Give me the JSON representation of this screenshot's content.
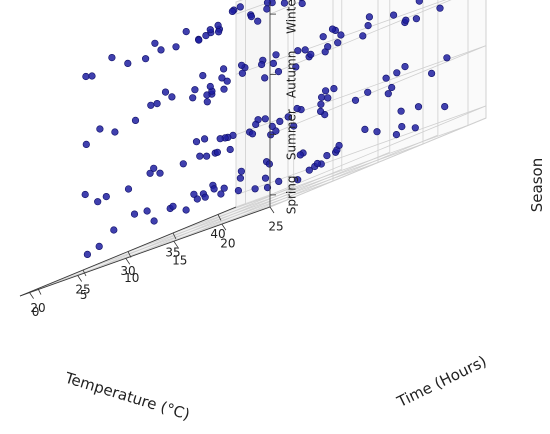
{
  "chart_data": {
    "type": "scatter",
    "projection": "3d",
    "marker_color": "#1f1fa0",
    "marker_edge_color": "#10106a",
    "pane_color": "#f2f2f2",
    "grid": true,
    "axes": {
      "x": {
        "label": "Temperature (°C)",
        "range": [
          18,
          42
        ],
        "ticks": [
          20,
          25,
          30,
          35,
          40
        ],
        "tick_labels": [
          "20",
          "25",
          "30",
          "35",
          "40"
        ]
      },
      "y": {
        "label": "Time (Hours)",
        "range": [
          -1,
          25
        ],
        "ticks": [
          0,
          5,
          10,
          15,
          20,
          25
        ],
        "tick_labels": [
          "0",
          "5",
          "10",
          "15",
          "20",
          "25"
        ]
      },
      "z": {
        "label": "Season",
        "range": [
          -0.2,
          3.2
        ],
        "ticks": [
          0,
          1,
          2,
          3
        ],
        "tick_labels": [
          "Spring",
          "Summer",
          "Autumn",
          "Winter"
        ]
      }
    },
    "series": [
      {
        "points": [
          [
            22.1,
            3.4,
            0.12
          ],
          [
            27.8,
            8.9,
            0.33
          ],
          [
            34.5,
            14.2,
            0.07
          ],
          [
            39.2,
            20.6,
            0.41
          ],
          [
            25.3,
            23.1,
            0.18
          ],
          [
            31.7,
            1.8,
            0.25
          ],
          [
            36.9,
            11.4,
            0.02
          ],
          [
            20.6,
            17.8,
            0.36
          ],
          [
            29.4,
            5.6,
            0.15
          ],
          [
            33.2,
            21.9,
            0.29
          ],
          [
            24.8,
            12.7,
            0.44
          ],
          [
            38.1,
            2.9,
            0.09
          ],
          [
            21.9,
            9.3,
            0.22
          ],
          [
            35.6,
            18.4,
            0.38
          ],
          [
            28.3,
            15.1,
            0.05
          ],
          [
            40.7,
            7.2,
            0.31
          ],
          [
            26.5,
            0.8,
            0.27
          ],
          [
            32.9,
            24.2,
            0.13
          ],
          [
            23.7,
            19.6,
            0.47
          ],
          [
            37.4,
            13.8,
            0.19
          ],
          [
            30.2,
            10.5,
            0.35
          ],
          [
            19.4,
            4.7,
            0.08
          ],
          [
            34.8,
            6.3,
            0.42
          ],
          [
            27.1,
            22.4,
            0.24
          ],
          [
            41.3,
            16.9,
            0.16
          ],
          [
            22.9,
            14.6,
            0.39
          ],
          [
            36.2,
            0.4,
            0.21
          ],
          [
            29.9,
            19.2,
            0.11
          ],
          [
            25.6,
            7.8,
            0.32
          ],
          [
            38.8,
            23.7,
            0.26
          ],
          [
            31.4,
            12.1,
            0.46
          ],
          [
            20.3,
            21.3,
            0.17
          ],
          [
            35.1,
            9.9,
            0.03
          ],
          [
            28.7,
            2.2,
            0.37
          ],
          [
            33.9,
            17.3,
            0.28
          ],
          [
            24.2,
            5.1,
            0.43
          ],
          [
            39.6,
            11.6,
            0.14
          ],
          [
            26.9,
            16.2,
            0.23
          ],
          [
            32.3,
            3.7,
            0.34
          ],
          [
            21.5,
            24.6,
            0.06
          ],
          [
            37.8,
            20.1,
            0.45
          ],
          [
            30.6,
            8.1,
            0.2
          ],
          [
            23.3,
            13.3,
            0.3
          ],
          [
            36.5,
            22.8,
            0.1
          ],
          [
            28.1,
            18.7,
            0.4
          ],
          [
            21.4,
            2.6,
            1.07
          ],
          [
            27.3,
            9.7,
            0.94
          ],
          [
            34.1,
            15.3,
            1.18
          ],
          [
            39.8,
            21.4,
            0.88
          ],
          [
            24.9,
            23.8,
            1.03
          ],
          [
            31.2,
            1.2,
            0.9
          ],
          [
            36.4,
            10.6,
            1.12
          ],
          [
            20.1,
            18.9,
            0.97
          ],
          [
            29.7,
            6.4,
            1.22
          ],
          [
            33.6,
            22.7,
            0.85
          ],
          [
            25.4,
            13.4,
            1.15
          ],
          [
            38.6,
            3.6,
            0.99
          ],
          [
            22.6,
            8.6,
            1.09
          ],
          [
            35.3,
            17.7,
            0.92
          ],
          [
            28.8,
            14.4,
            1.2
          ],
          [
            40.9,
            6.8,
            1.04
          ],
          [
            26.2,
            0.3,
            0.87
          ],
          [
            32.5,
            23.5,
            1.13
          ],
          [
            23.1,
            20.3,
            0.95
          ],
          [
            37.1,
            12.9,
            1.24
          ],
          [
            30.8,
            11.2,
            1.01
          ],
          [
            19.8,
            5.4,
            0.89
          ],
          [
            35.8,
            7.1,
            1.17
          ],
          [
            27.6,
            21.7,
            0.93
          ],
          [
            41.6,
            16.1,
            1.08
          ],
          [
            22.3,
            15.8,
            1.19
          ],
          [
            36.8,
            1.7,
            0.86
          ],
          [
            29.1,
            19.9,
            1.11
          ],
          [
            26.1,
            8.4,
            0.96
          ],
          [
            38.3,
            24.4,
            1.06
          ],
          [
            31.9,
            12.6,
            0.91
          ],
          [
            20.9,
            20.8,
            1.23
          ],
          [
            34.9,
            10.2,
            1.02
          ],
          [
            28.4,
            2.8,
            0.98
          ],
          [
            33.4,
            16.6,
            1.14
          ],
          [
            24.5,
            4.2,
            0.88
          ],
          [
            39.1,
            11.9,
            1.21
          ],
          [
            26.7,
            17.1,
            1.05
          ],
          [
            32.1,
            4.5,
            0.94
          ],
          [
            21.2,
            23.9,
            1.16
          ],
          [
            37.5,
            19.4,
            0.9
          ],
          [
            30.3,
            9.1,
            1.1
          ],
          [
            23.8,
            14.1,
            0.97
          ],
          [
            36.1,
            22.1,
            1.18
          ],
          [
            27.9,
            18.2,
            0.92
          ],
          [
            34.3,
            5.9,
            1.07
          ],
          [
            25.8,
            10.9,
            1.25
          ],
          [
            38.9,
            15.6,
            0.95
          ],
          [
            22.5,
            3.1,
            2.06
          ],
          [
            28.2,
            9.4,
            1.93
          ],
          [
            34.7,
            14.9,
            2.17
          ],
          [
            39.4,
            20.2,
            1.88
          ],
          [
            25.1,
            22.6,
            2.03
          ],
          [
            31.5,
            1.5,
            2.21
          ],
          [
            37.2,
            11.1,
            1.9
          ],
          [
            20.4,
            18.3,
            2.12
          ],
          [
            29.6,
            6.1,
            1.97
          ],
          [
            33.1,
            21.2,
            2.24
          ],
          [
            24.6,
            12.3,
            1.86
          ],
          [
            38.4,
            3.3,
            2.09
          ],
          [
            21.7,
            9.8,
            2.15
          ],
          [
            35.9,
            17.9,
            1.94
          ],
          [
            28.6,
            15.7,
            2.2
          ],
          [
            40.5,
            7.6,
            2.01
          ],
          [
            26.3,
            1.1,
            1.89
          ],
          [
            32.7,
            24.1,
            2.13
          ],
          [
            23.5,
            19.1,
            2.23
          ],
          [
            37.7,
            13.6,
            1.96
          ],
          [
            30.1,
            10.8,
            2.08
          ],
          [
            19.6,
            4.4,
            1.91
          ],
          [
            34.4,
            6.7,
            2.18
          ],
          [
            27.4,
            22.2,
            2.04
          ],
          [
            41.1,
            17.4,
            1.87
          ],
          [
            22.8,
            14.3,
            2.11
          ],
          [
            36.6,
            0.6,
            2.22
          ],
          [
            29.8,
            19.7,
            1.95
          ],
          [
            25.9,
            7.4,
            2.14
          ],
          [
            38.7,
            23.3,
            1.92
          ],
          [
            31.3,
            12.9,
            2.05
          ],
          [
            20.7,
            21.6,
            2.19
          ],
          [
            35.4,
            9.6,
            1.85
          ],
          [
            28.9,
            2.4,
            2.1
          ],
          [
            33.7,
            16.8,
            2.25
          ],
          [
            24.1,
            5.3,
            1.98
          ],
          [
            39.9,
            11.3,
            2.16
          ],
          [
            26.6,
            16.4,
            1.9
          ],
          [
            32.2,
            3.9,
            2.07
          ],
          [
            21.3,
            24.8,
            2.2
          ],
          [
            37.9,
            20.5,
            1.93
          ],
          [
            30.5,
            8.3,
            2.12
          ],
          [
            23.4,
            13.9,
            2.02
          ],
          [
            36.3,
            23.4,
            2.18
          ],
          [
            27.7,
            18.6,
            1.89
          ],
          [
            34.0,
            5.2,
            2.23
          ],
          [
            25.2,
            11.7,
            1.97
          ],
          [
            38.2,
            16.3,
            2.06
          ],
          [
            29.3,
            21.8,
            2.14
          ],
          [
            31.8,
            7.3,
            1.91
          ],
          [
            21.8,
            2.3,
            3.02
          ],
          [
            27.5,
            8.7,
            2.91
          ],
          [
            34.2,
            14.7,
            3.13
          ],
          [
            39.7,
            20.9,
            2.86
          ],
          [
            25.7,
            23.4,
            3.07
          ],
          [
            31.1,
            1.4,
            2.94
          ],
          [
            36.7,
            11.8,
            3.18
          ],
          [
            20.2,
            17.6,
            2.99
          ],
          [
            29.2,
            5.8,
            3.11
          ],
          [
            33.8,
            22.3,
            2.88
          ],
          [
            24.4,
            12.8,
            3.04
          ],
          [
            38.5,
            3.8,
            2.93
          ],
          [
            22.2,
            9.1,
            3.16
          ],
          [
            35.2,
            18.1,
            2.97
          ],
          [
            28.5,
            15.4,
            3.09
          ],
          [
            40.8,
            6.9,
            2.9
          ],
          [
            26.4,
            0.7,
            3.14
          ],
          [
            32.6,
            24.3,
            2.96
          ],
          [
            23.2,
            19.8,
            3.06
          ],
          [
            37.3,
            13.2,
            2.87
          ],
          [
            30.4,
            10.3,
            3.19
          ],
          [
            19.7,
            4.9,
            3.01
          ],
          [
            35.7,
            6.5,
            2.92
          ],
          [
            27.2,
            21.5,
            3.12
          ],
          [
            41.4,
            16.7,
            2.98
          ],
          [
            22.7,
            15.2,
            3.08
          ],
          [
            36.1,
            1.9,
            2.89
          ],
          [
            29.5,
            20.4,
            3.15
          ],
          [
            25.5,
            8.2,
            2.95
          ],
          [
            38.1,
            24.0,
            3.05
          ],
          [
            31.6,
            12.4,
            3.17
          ],
          [
            20.8,
            21.1,
            2.93
          ],
          [
            35.0,
            10.1,
            3.1
          ],
          [
            28.0,
            2.7,
            2.91
          ],
          [
            33.3,
            17.2,
            3.2
          ],
          [
            24.0,
            4.6,
            2.97
          ],
          [
            39.3,
            12.2,
            3.03
          ],
          [
            26.8,
            16.5,
            3.13
          ],
          [
            32.4,
            4.1,
            2.88
          ],
          [
            21.1,
            23.6,
            3.07
          ],
          [
            37.6,
            19.3,
            2.94
          ],
          [
            30.7,
            9.2,
            3.16
          ],
          [
            23.6,
            14.5,
            3.0
          ],
          [
            36.4,
            22.5,
            3.11
          ],
          [
            28.2,
            18.8,
            2.9
          ],
          [
            34.6,
            5.7,
            3.14
          ],
          [
            25.3,
            11.5,
            2.96
          ],
          [
            39.0,
            15.9,
            3.09
          ]
        ]
      }
    ]
  }
}
